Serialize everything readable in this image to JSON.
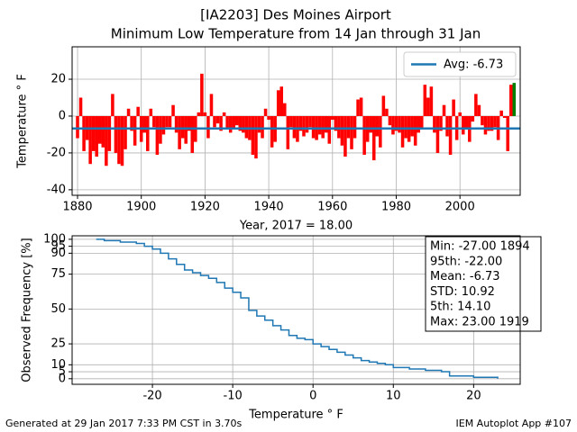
{
  "chart_data": [
    {
      "type": "bar",
      "title": [
        "[IA2203] Des Moines Airport",
        "Minimum Low Temperature from 14 Jan through 31 Jan"
      ],
      "x_label": "Year, 2017 = 18.00",
      "y_label": "Temperature $^\\circ$F",
      "x": [
        1880,
        1881,
        1882,
        1883,
        1884,
        1885,
        1886,
        1887,
        1888,
        1889,
        1890,
        1891,
        1892,
        1893,
        1894,
        1895,
        1896,
        1897,
        1898,
        1899,
        1900,
        1901,
        1902,
        1903,
        1904,
        1905,
        1906,
        1907,
        1908,
        1909,
        1910,
        1911,
        1912,
        1913,
        1914,
        1915,
        1916,
        1917,
        1918,
        1919,
        1920,
        1921,
        1922,
        1923,
        1924,
        1925,
        1926,
        1927,
        1928,
        1929,
        1930,
        1931,
        1932,
        1933,
        1934,
        1935,
        1936,
        1937,
        1938,
        1939,
        1940,
        1941,
        1942,
        1943,
        1944,
        1945,
        1946,
        1947,
        1948,
        1949,
        1950,
        1951,
        1952,
        1953,
        1954,
        1955,
        1956,
        1957,
        1958,
        1959,
        1960,
        1961,
        1962,
        1963,
        1964,
        1965,
        1966,
        1967,
        1968,
        1969,
        1970,
        1971,
        1972,
        1973,
        1974,
        1975,
        1976,
        1977,
        1978,
        1979,
        1980,
        1981,
        1982,
        1983,
        1984,
        1985,
        1986,
        1987,
        1988,
        1989,
        1990,
        1991,
        1992,
        1993,
        1994,
        1995,
        1996,
        1997,
        1998,
        1999,
        2000,
        2001,
        2002,
        2003,
        2004,
        2005,
        2006,
        2007,
        2008,
        2009,
        2010,
        2011,
        2012,
        2013,
        2014,
        2015,
        2016,
        2017
      ],
      "values": [
        -12,
        10,
        -19,
        -13,
        -26,
        -19,
        -22,
        -15,
        -17,
        -27,
        -19,
        12,
        -20,
        -26,
        -27,
        -18,
        4,
        -8,
        -16,
        5,
        -14,
        -9,
        -19,
        4,
        -6,
        -21,
        -15,
        -10,
        -6,
        -6,
        6,
        -9,
        -18,
        -12,
        -15,
        -8,
        -20,
        -14,
        2,
        23,
        2,
        -12,
        12,
        -6,
        -4,
        -8,
        2,
        -7,
        -9,
        -7,
        -5,
        -8,
        -9,
        -12,
        -13,
        -21,
        -23,
        -9,
        -12,
        4,
        -2,
        -17,
        -14,
        14,
        16,
        7,
        -18,
        -6,
        -12,
        -14,
        -8,
        -11,
        -9,
        -6,
        -12,
        -13,
        -10,
        -12,
        -9,
        -15,
        -2,
        -8,
        -12,
        -16,
        -22,
        -12,
        -18,
        -12,
        9,
        10,
        -21,
        -14,
        -9,
        -24,
        -11,
        -17,
        11,
        4,
        -5,
        -10,
        -8,
        -9,
        -17,
        -12,
        -14,
        -11,
        -16,
        -9,
        -7,
        17,
        10,
        16,
        -9,
        -20,
        -8,
        6,
        -11,
        -21,
        9,
        -13,
        2,
        -10,
        -7,
        -14,
        -3,
        12,
        6,
        -5,
        -10,
        -8,
        -8,
        -6,
        -13,
        3,
        -1,
        -19,
        17,
        18
      ],
      "color": "#ff0000",
      "last_color": "#008000",
      "avg": -6.73,
      "avg_label": "Avg: -6.73",
      "avg_color": "#1f77b4",
      "xlim": [
        1878.3,
        2018.9
      ],
      "xticks": [
        1880,
        1900,
        1920,
        1940,
        1960,
        1980,
        2000
      ],
      "ylim": [
        -43,
        37.6
      ],
      "yticks": [
        -40,
        -20,
        0,
        20
      ],
      "grid": true,
      "legend": "upper right"
    },
    {
      "type": "line",
      "drawstyle": "steps-post",
      "x_label": "Temperature $^\\circ$F",
      "y_label": "Observed Frequency [%]",
      "x": [
        -27,
        -26,
        -24,
        -22,
        -21,
        -20,
        -19,
        -18,
        -17,
        -16,
        -15,
        -14,
        -13,
        -12,
        -11,
        -10,
        -9,
        -8,
        -7,
        -6,
        -5,
        -4,
        -3,
        -2,
        -1,
        0,
        1,
        2,
        3,
        4,
        5,
        6,
        7,
        8,
        9,
        10,
        12,
        14,
        16,
        17,
        20,
        23
      ],
      "values": [
        100,
        99,
        98,
        97,
        95,
        93,
        90,
        86,
        82,
        78,
        76,
        74,
        72,
        69,
        65,
        62,
        58,
        49,
        45,
        42,
        38,
        35,
        31,
        29,
        28,
        25,
        23,
        21,
        19,
        17,
        15,
        13,
        12,
        11,
        10,
        8,
        7,
        6,
        5,
        2,
        1,
        0
      ],
      "color": "#1f77b4",
      "xlim": [
        -30,
        25.8
      ],
      "xticks": [
        -20,
        -10,
        0,
        10,
        20
      ],
      "ylim": [
        -4,
        102.5
      ],
      "yticks": [
        0,
        5,
        10,
        25,
        50,
        75,
        90,
        95,
        100
      ],
      "grid": true,
      "stats": [
        "Min: -27.00 1894",
        "95th: -22.00",
        "Mean: -6.73",
        "STD: 10.92",
        "5th: 14.10",
        "Max: 23.00 1919"
      ]
    }
  ],
  "footer": {
    "left": "Generated at 29 Jan 2017 7:33 PM CST in 3.70s",
    "right": "IEM Autoplot App #107"
  }
}
